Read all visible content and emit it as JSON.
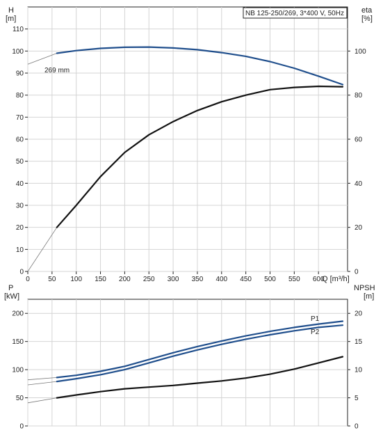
{
  "chart_data": [
    {
      "type": "line",
      "title": "NB 125-250/269, 3*400 V, 50Hz",
      "xlabel": "Q [m³/h]",
      "xlim": [
        0,
        660
      ],
      "x_ticks": [
        0,
        50,
        100,
        150,
        200,
        250,
        300,
        350,
        400,
        450,
        500,
        550,
        600
      ],
      "y_left": {
        "label_top": "H",
        "label_unit": "[m]",
        "lim": [
          0,
          120
        ],
        "ticks": [
          0,
          10,
          20,
          30,
          40,
          50,
          60,
          70,
          80,
          90,
          100,
          110
        ]
      },
      "y_right": {
        "label_top": "eta",
        "label_unit": "[%]",
        "lim": [
          0,
          120
        ],
        "ticks": [
          0,
          20,
          40,
          60,
          80,
          100
        ]
      },
      "grid": true,
      "annotation": "269 mm",
      "series": [
        {
          "name": "H",
          "axis": "left",
          "color": "#1f4e8c",
          "x": [
            60,
            100,
            150,
            200,
            250,
            300,
            350,
            400,
            450,
            500,
            550,
            600,
            650
          ],
          "y": [
            99,
            100.2,
            101.2,
            101.7,
            101.8,
            101.4,
            100.6,
            99.3,
            97.6,
            95.2,
            92.2,
            88.6,
            84.8
          ]
        },
        {
          "name": "eta",
          "axis": "right",
          "color": "#111111",
          "x": [
            60,
            100,
            150,
            200,
            250,
            300,
            350,
            400,
            450,
            500,
            550,
            600,
            650
          ],
          "y": [
            20,
            30,
            43,
            54,
            62,
            68,
            73,
            77,
            80,
            82.5,
            83.5,
            84,
            83.8
          ]
        }
      ],
      "extension_lines": [
        {
          "axis": "left",
          "x": [
            0,
            60
          ],
          "y": [
            94,
            99
          ]
        },
        {
          "axis": "right",
          "x": [
            0,
            60
          ],
          "y": [
            0,
            20
          ]
        }
      ]
    },
    {
      "type": "line",
      "xlabel": "",
      "xlim": [
        0,
        660
      ],
      "y_left": {
        "label_top": "P",
        "label_unit": "[kW]",
        "lim": [
          0,
          225
        ],
        "ticks": [
          0,
          50,
          100,
          150,
          200
        ]
      },
      "y_right": {
        "label_top": "NPSH",
        "label_unit": "[m]",
        "lim": [
          0,
          22.5
        ],
        "ticks": [
          0,
          5,
          10,
          15,
          20
        ]
      },
      "grid": true,
      "series": [
        {
          "name": "P1",
          "axis": "left",
          "color": "#1f4e8c",
          "x": [
            60,
            100,
            150,
            200,
            250,
            300,
            350,
            400,
            450,
            500,
            550,
            600,
            650
          ],
          "y": [
            86,
            90,
            97,
            106,
            118,
            130,
            141,
            151,
            160,
            168,
            175,
            181,
            186
          ]
        },
        {
          "name": "P2",
          "axis": "left",
          "color": "#1f4e8c",
          "x": [
            60,
            100,
            150,
            200,
            250,
            300,
            350,
            400,
            450,
            500,
            550,
            600,
            650
          ],
          "y": [
            79,
            84,
            91,
            100,
            112,
            124,
            135,
            145,
            154,
            162,
            169,
            175,
            179
          ]
        },
        {
          "name": "NPSH",
          "axis": "right",
          "color": "#111111",
          "x": [
            60,
            100,
            150,
            200,
            250,
            300,
            350,
            400,
            450,
            500,
            550,
            600,
            650
          ],
          "y": [
            5.0,
            5.5,
            6.1,
            6.6,
            6.9,
            7.2,
            7.6,
            8.0,
            8.5,
            9.2,
            10.1,
            11.2,
            12.3
          ]
        }
      ],
      "extension_lines": [
        {
          "axis": "left",
          "x": [
            0,
            60
          ],
          "y": [
            82,
            86
          ]
        },
        {
          "axis": "left",
          "x": [
            0,
            60
          ],
          "y": [
            73,
            79
          ]
        },
        {
          "axis": "right",
          "x": [
            0,
            60
          ],
          "y": [
            4.1,
            5.0
          ]
        }
      ]
    }
  ]
}
